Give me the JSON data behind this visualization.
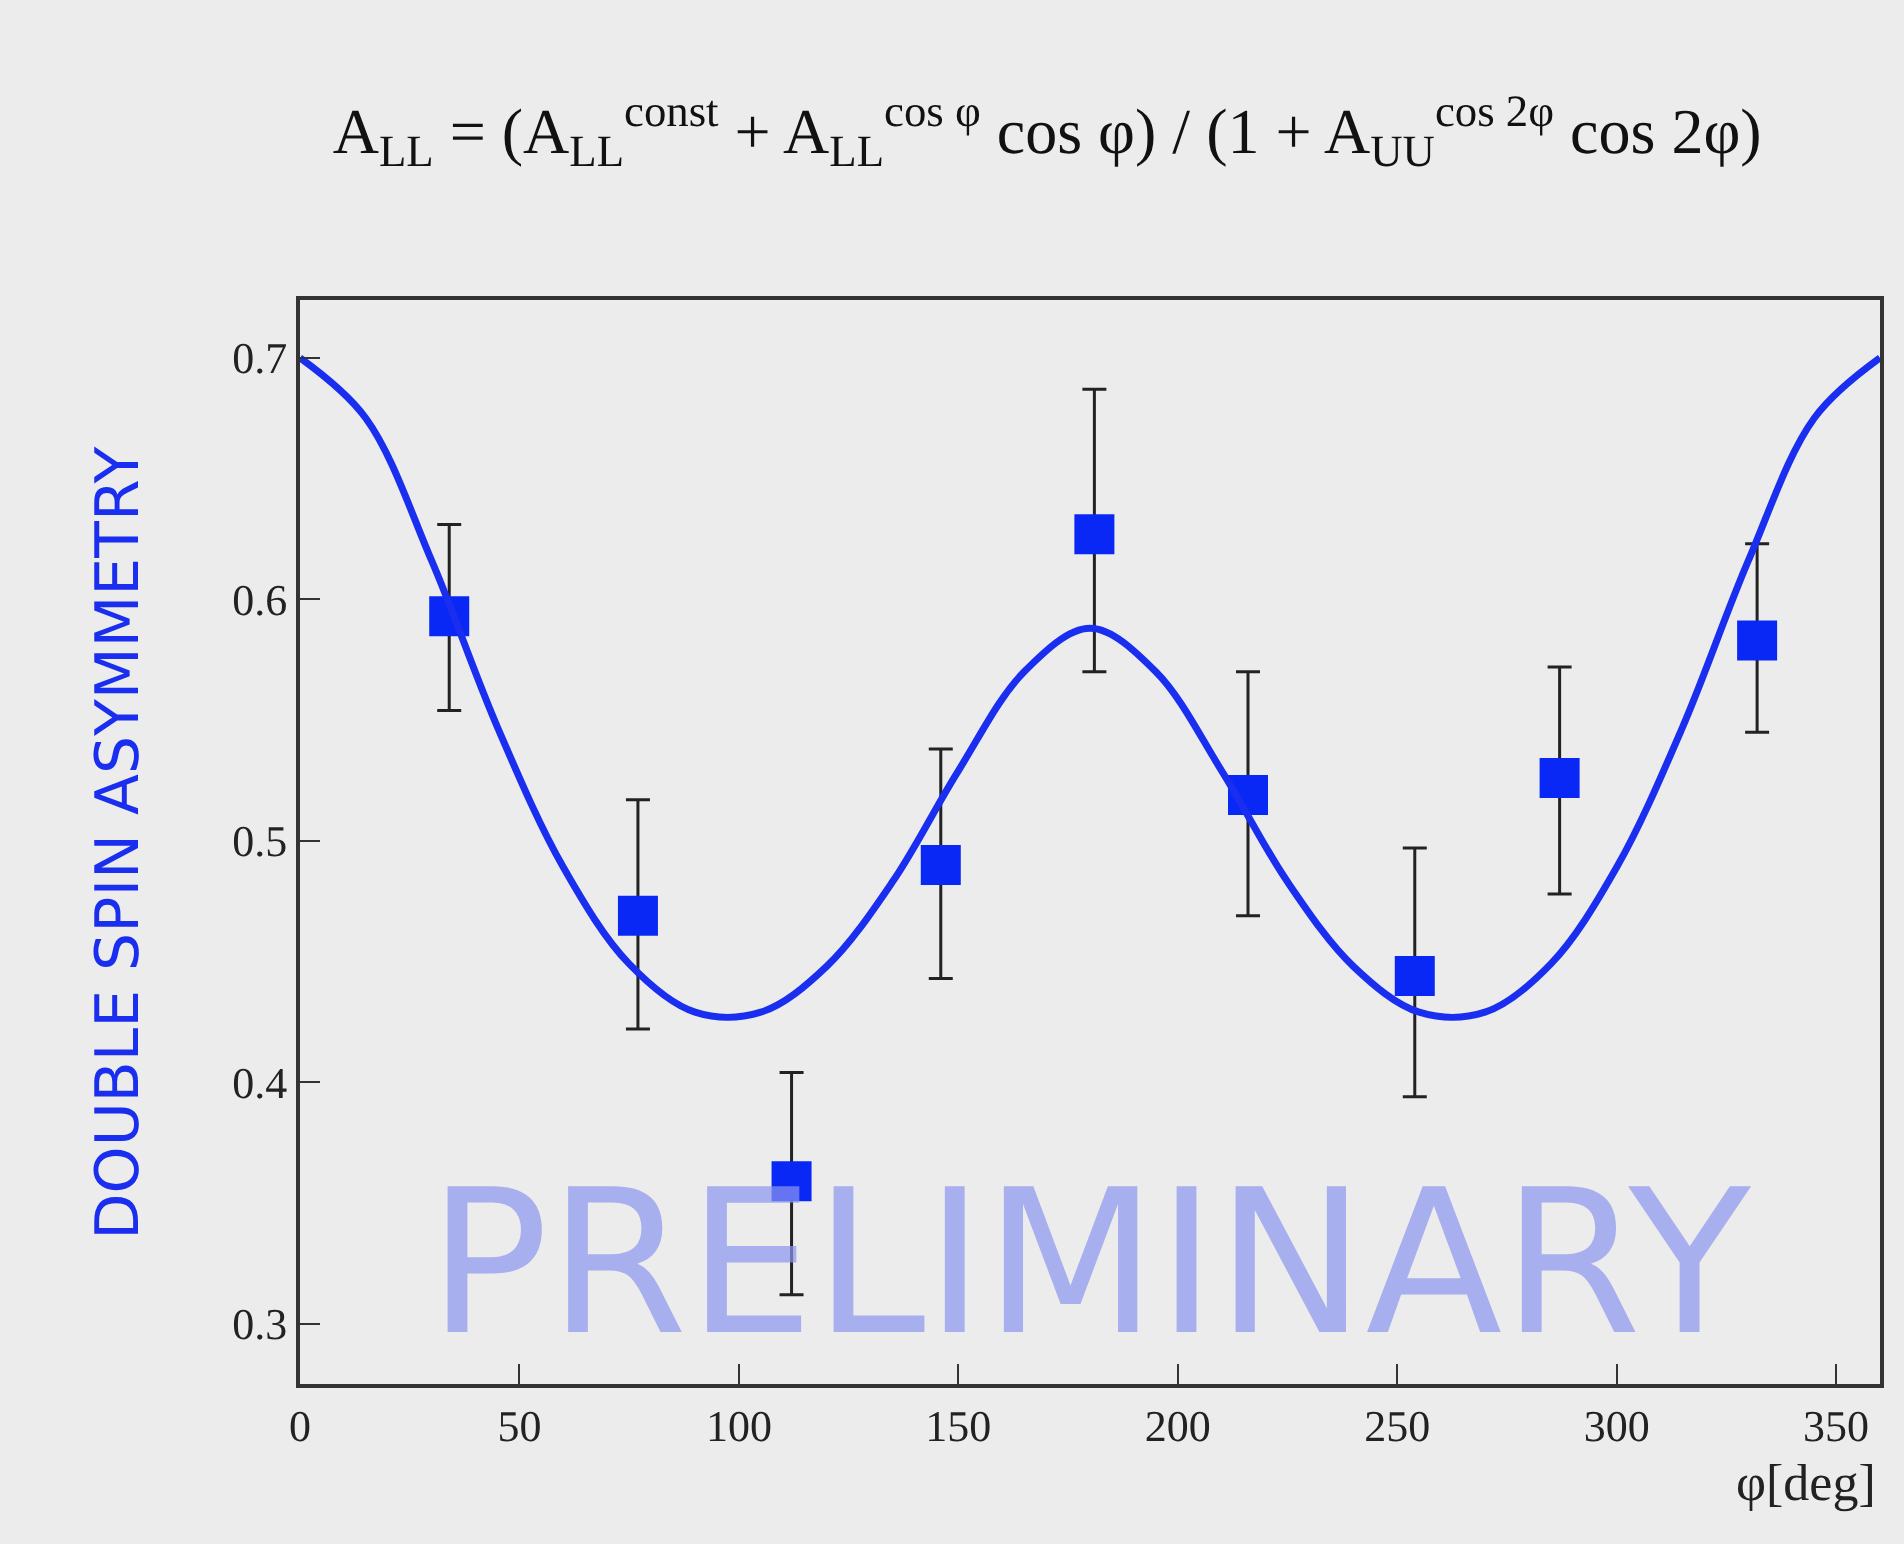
{
  "chart_data": {
    "type": "scatter",
    "title": "A$_{LL}$ = (A$_{LL}$$^{const}$ + A$_{LL}$$^{cos φ}$ cos φ) / (1 + A$_{UU}$$^{cos 2φ}$ cos 2φ)",
    "xlabel": "φ[deg]",
    "ylabel": "DOUBLE SPIN ASYMMETRY",
    "x": [
      34,
      77,
      112,
      146,
      181,
      216,
      254,
      287,
      332
    ],
    "series": [
      {
        "color": "#0a28f5",
        "marker": "square",
        "values": [
          0.593,
          0.469,
          0.359,
          0.49,
          0.627,
          0.519,
          0.444,
          0.526,
          0.583
        ],
        "errors": [
          [
            0.554,
            0.631
          ],
          [
            0.422,
            0.517
          ],
          [
            0.312,
            0.404
          ],
          [
            0.443,
            0.538
          ],
          [
            0.57,
            0.687
          ],
          [
            0.469,
            0.57
          ],
          [
            0.394,
            0.497
          ],
          [
            0.478,
            0.572
          ],
          [
            0.545,
            0.623
          ]
        ]
      },
      {
        "type": "line",
        "color": "#1a2ef0",
        "marker": "none",
        "line_style": "solid",
        "x": [
          0,
          15,
          30,
          45,
          60,
          75,
          90,
          105,
          120,
          135,
          150,
          165,
          180,
          195,
          210,
          225,
          240,
          255,
          270,
          285,
          300,
          315,
          330,
          345,
          360
        ],
        "values": [
          0.7,
          0.675,
          0.616,
          0.547,
          0.489,
          0.449,
          0.429,
          0.429,
          0.448,
          0.483,
          0.529,
          0.57,
          0.588,
          0.57,
          0.529,
          0.483,
          0.448,
          0.429,
          0.429,
          0.449,
          0.489,
          0.547,
          0.616,
          0.675,
          0.7
        ]
      }
    ],
    "xlim": [
      0,
      360
    ],
    "xticks": [
      0,
      50,
      100,
      150,
      200,
      250,
      300,
      350
    ],
    "ylim": [
      0.275,
      0.724
    ],
    "yticks": [
      0.3,
      0.4,
      0.5,
      0.6,
      0.7
    ],
    "annotations": [
      "PRELIMINARY"
    ],
    "grid": false
  }
}
